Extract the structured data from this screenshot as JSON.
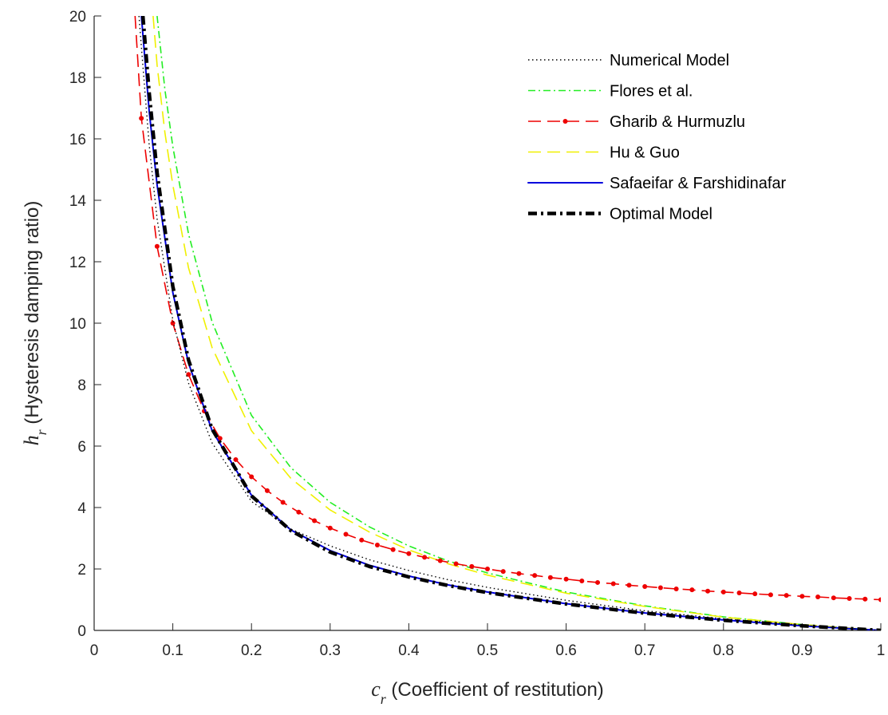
{
  "chart_data": {
    "type": "line",
    "title": "",
    "xlabel": {
      "symbol": "c",
      "subscript": "r",
      "text": "(Coefficient of restitution)"
    },
    "ylabel": {
      "symbol": "h",
      "subscript": "r",
      "text": "(Hysteresis damping ratio)"
    },
    "xlim": [
      0,
      1
    ],
    "ylim": [
      0,
      20
    ],
    "xticks": [
      0,
      0.1,
      0.2,
      0.3,
      0.4,
      0.5,
      0.6,
      0.7,
      0.8,
      0.9,
      1
    ],
    "xtick_labels": [
      "0",
      "0.1",
      "0.2",
      "0.3",
      "0.4",
      "0.5",
      "0.6",
      "0.7",
      "0.8",
      "0.9",
      "1"
    ],
    "yticks": [
      0,
      2,
      4,
      6,
      8,
      10,
      12,
      14,
      16,
      18,
      20
    ],
    "ytick_labels": [
      "0",
      "2",
      "4",
      "6",
      "8",
      "10",
      "12",
      "14",
      "16",
      "18",
      "20"
    ],
    "grid": false,
    "legend_position": "top-right",
    "series": [
      {
        "name": "Numerical Model",
        "color": "#000000",
        "style": "dotted",
        "x": [
          0.057,
          0.06,
          0.07,
          0.08,
          0.1,
          0.12,
          0.15,
          0.2,
          0.25,
          0.3,
          0.35,
          0.4,
          0.45,
          0.5,
          0.6,
          0.7,
          0.8,
          0.9,
          1.0
        ],
        "y": [
          20,
          19.0,
          15.8,
          13.4,
          10.1,
          8.05,
          6.1,
          4.2,
          3.3,
          2.75,
          2.3,
          1.95,
          1.65,
          1.4,
          0.98,
          0.64,
          0.38,
          0.17,
          0.0
        ]
      },
      {
        "name": "Flores et al.",
        "color": "#22ee22",
        "style": "dashdot",
        "x": [
          0.08,
          0.09,
          0.1,
          0.12,
          0.15,
          0.2,
          0.25,
          0.3,
          0.35,
          0.4,
          0.45,
          0.5,
          0.6,
          0.7,
          0.8,
          0.9,
          1.0
        ],
        "y": [
          20,
          17.6,
          15.75,
          12.9,
          10.03,
          7.0,
          5.3,
          4.17,
          3.37,
          2.75,
          2.26,
          1.87,
          1.25,
          0.8,
          0.44,
          0.19,
          0.0
        ]
      },
      {
        "name": "Gharib & Hurmuzlu",
        "color": "#ee0000",
        "style": "dashed-marker",
        "x": [
          0.052,
          0.06,
          0.08,
          0.1,
          0.12,
          0.14,
          0.16,
          0.18,
          0.2,
          0.22,
          0.24,
          0.26,
          0.28,
          0.3,
          0.32,
          0.34,
          0.36,
          0.38,
          0.4,
          0.42,
          0.44,
          0.46,
          0.48,
          0.5,
          0.52,
          0.54,
          0.56,
          0.58,
          0.6,
          0.62,
          0.64,
          0.66,
          0.68,
          0.7,
          0.72,
          0.74,
          0.76,
          0.78,
          0.8,
          0.82,
          0.84,
          0.86,
          0.88,
          0.9,
          0.92,
          0.94,
          0.96,
          0.98,
          1.0
        ],
        "y": [
          20,
          16.67,
          12.5,
          10.0,
          8.33,
          7.14,
          6.25,
          5.56,
          5.0,
          4.55,
          4.17,
          3.85,
          3.57,
          3.33,
          3.13,
          2.94,
          2.78,
          2.63,
          2.5,
          2.38,
          2.27,
          2.17,
          2.08,
          2.0,
          1.92,
          1.85,
          1.79,
          1.72,
          1.67,
          1.61,
          1.56,
          1.52,
          1.47,
          1.43,
          1.39,
          1.35,
          1.32,
          1.28,
          1.25,
          1.22,
          1.19,
          1.16,
          1.14,
          1.11,
          1.09,
          1.06,
          1.04,
          1.02,
          1.0
        ]
      },
      {
        "name": "Hu & Guo",
        "color": "#f0f000",
        "style": "dashed",
        "x": [
          0.075,
          0.08,
          0.09,
          0.1,
          0.12,
          0.15,
          0.2,
          0.25,
          0.3,
          0.35,
          0.4,
          0.45,
          0.5,
          0.6,
          0.7,
          0.8,
          0.9,
          1.0
        ],
        "y": [
          20,
          18.4,
          16.2,
          14.5,
          11.8,
          9.2,
          6.5,
          4.95,
          3.92,
          3.2,
          2.62,
          2.17,
          1.8,
          1.21,
          0.78,
          0.43,
          0.19,
          0.0
        ]
      },
      {
        "name": "Safaeifar & Farshidinafar",
        "color": "#0000dd",
        "style": "solid",
        "x": [
          0.06,
          0.07,
          0.08,
          0.1,
          0.12,
          0.15,
          0.2,
          0.25,
          0.3,
          0.35,
          0.4,
          0.45,
          0.5,
          0.6,
          0.7,
          0.8,
          0.9,
          1.0
        ],
        "y": [
          20,
          16.9,
          14.5,
          11.0,
          8.7,
          6.5,
          4.4,
          3.27,
          2.6,
          2.12,
          1.77,
          1.48,
          1.25,
          0.87,
          0.57,
          0.34,
          0.15,
          0.0
        ]
      },
      {
        "name": "Optimal Model",
        "color": "#000000",
        "style": "thick-dashdot",
        "x": [
          0.062,
          0.07,
          0.08,
          0.1,
          0.12,
          0.15,
          0.2,
          0.25,
          0.3,
          0.35,
          0.4,
          0.45,
          0.5,
          0.6,
          0.7,
          0.8,
          0.9,
          1.0
        ],
        "y": [
          20,
          17.5,
          14.9,
          11.2,
          8.8,
          6.55,
          4.38,
          3.25,
          2.55,
          2.08,
          1.74,
          1.46,
          1.23,
          0.86,
          0.56,
          0.33,
          0.15,
          0.0
        ]
      }
    ]
  }
}
